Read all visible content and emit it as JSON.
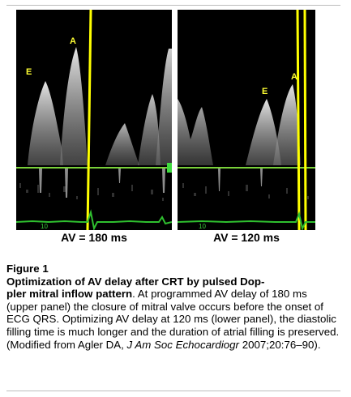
{
  "panels": {
    "left": {
      "label": "AV = 180 ms",
      "wave_e": "E",
      "wave_a": "A",
      "ecg_tick_label": "10"
    },
    "right": {
      "label": "AV = 120 ms",
      "wave_e": "E",
      "wave_a": "A",
      "ecg_tick_label": "10"
    }
  },
  "caption": {
    "figure_title": "Figure 1",
    "heading": "Optimization of AV delay after CRT by pulsed Doppler mitral inflow pattern",
    "heading_line1": "Optimization of AV delay after CRT by pulsed Dop-",
    "heading_line2": "pler mitral inflow pattern",
    "body_start": ". At programmed AV delay of 180 ms (upper panel) the closure of mitral valve occurs before the onset of ECG QRS. Optimizing AV delay at 120 ms (lower panel), the diastolic filling time is much longer and the duration of atrial filling is preserved. (Modified from Agler DA, ",
    "journal": "J Am Soc Echocardiogr",
    "body_end": " 2007;20:76–90)."
  },
  "colors": {
    "background": "#000000",
    "baseline": "#7ad13a",
    "marker": "#ffff00",
    "ecg": "#2fc02f",
    "doppler": "#d9d9d9"
  }
}
